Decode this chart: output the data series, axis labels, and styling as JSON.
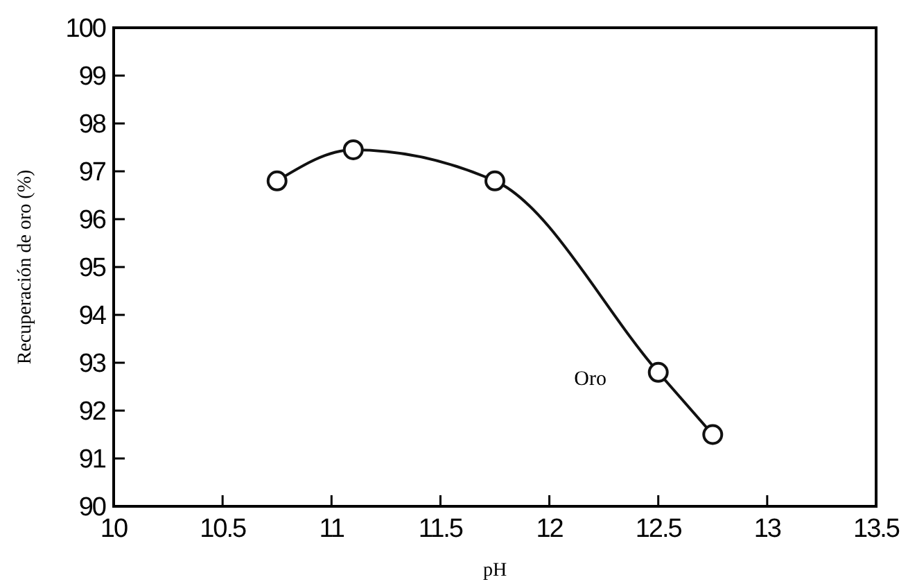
{
  "chart_data": {
    "type": "line",
    "xlabel": "pH",
    "ylabel": "Recuperación de oro (%)",
    "x": [
      10.75,
      11.1,
      11.75,
      12.5,
      12.75
    ],
    "series": [
      {
        "name": "Oro",
        "color": "#111111",
        "values": [
          96.8,
          97.45,
          96.8,
          92.8,
          91.5
        ]
      }
    ],
    "xlim": [
      10,
      13.5
    ],
    "xticks": [
      10,
      10.5,
      11,
      11.5,
      12,
      12.5,
      13,
      13.5
    ],
    "ylim": [
      90,
      100
    ],
    "yticks": [
      90,
      91,
      92,
      93,
      94,
      95,
      96,
      97,
      98,
      99,
      100
    ],
    "marker": "circle",
    "line_style": "solid",
    "grid": false,
    "legend": false
  }
}
